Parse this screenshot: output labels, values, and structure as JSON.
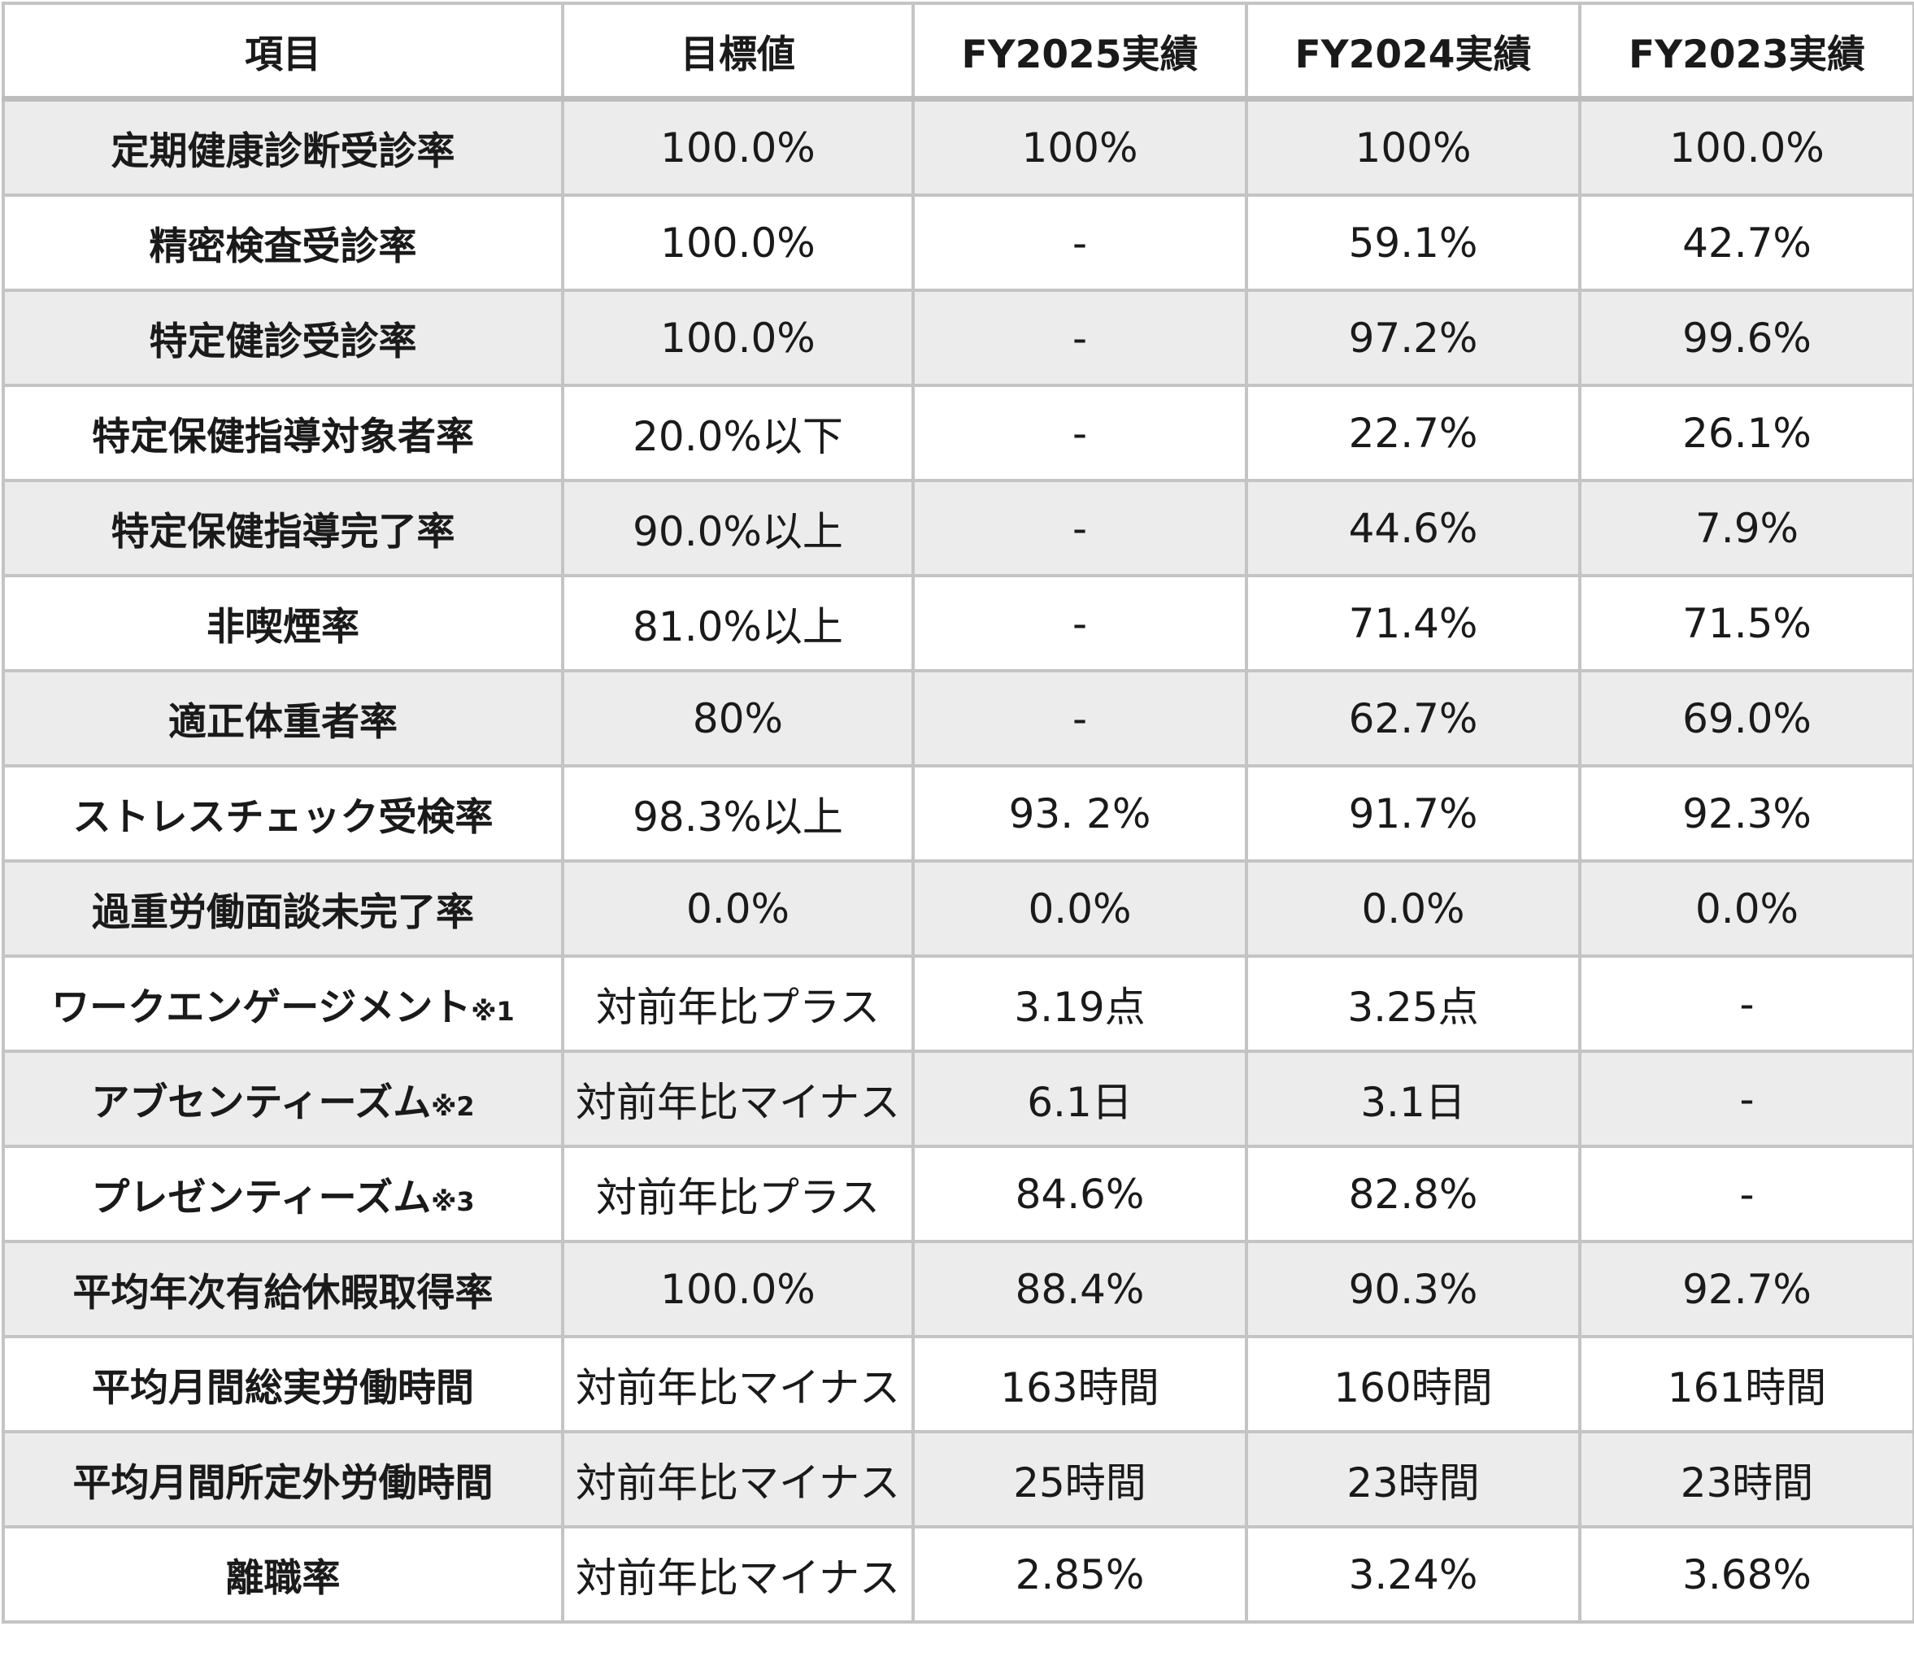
{
  "table": {
    "headers": [
      "項目",
      "目標値",
      "FY2025実績",
      "FY2024実績",
      "FY2023実績"
    ],
    "rows": [
      {
        "item": "定期健康診断受診率",
        "note": "",
        "target": "100.0%",
        "fy2025": "100%",
        "fy2024": "100%",
        "fy2023": "100.0%"
      },
      {
        "item": "精密検査受診率",
        "note": "",
        "target": "100.0%",
        "fy2025": "-",
        "fy2024": "59.1%",
        "fy2023": "42.7%"
      },
      {
        "item": "特定健診受診率",
        "note": "",
        "target": "100.0%",
        "fy2025": "-",
        "fy2024": "97.2%",
        "fy2023": "99.6%"
      },
      {
        "item": "特定保健指導対象者率",
        "note": "",
        "target": "20.0%以下",
        "fy2025": "-",
        "fy2024": "22.7%",
        "fy2023": "26.1%"
      },
      {
        "item": "特定保健指導完了率",
        "note": "",
        "target": "90.0%以上",
        "fy2025": "-",
        "fy2024": "44.6%",
        "fy2023": "7.9%"
      },
      {
        "item": "非喫煙率",
        "note": "",
        "target": "81.0%以上",
        "fy2025": "-",
        "fy2024": "71.4%",
        "fy2023": "71.5%"
      },
      {
        "item": "適正体重者率",
        "note": "",
        "target": "80%",
        "fy2025": "-",
        "fy2024": "62.7%",
        "fy2023": "69.0%"
      },
      {
        "item": "ストレスチェック受検率",
        "note": "",
        "target": "98.3%以上",
        "fy2025": "93. 2%",
        "fy2024": "91.7%",
        "fy2023": "92.3%"
      },
      {
        "item": "過重労働面談未完了率",
        "note": "",
        "target": "0.0%",
        "fy2025": "0.0%",
        "fy2024": "0.0%",
        "fy2023": "0.0%"
      },
      {
        "item": "ワークエンゲージメント",
        "note": "※1",
        "target": "対前年比プラス",
        "fy2025": "3.19点",
        "fy2024": "3.25点",
        "fy2023": "-"
      },
      {
        "item": "アブセンティーズム",
        "note": "※2",
        "target": "対前年比マイナス",
        "fy2025": "6.1日",
        "fy2024": "3.1日",
        "fy2023": "-"
      },
      {
        "item": "プレゼンティーズム",
        "note": "※3",
        "target": "対前年比プラス",
        "fy2025": "84.6%",
        "fy2024": "82.8%",
        "fy2023": "-"
      },
      {
        "item": "平均年次有給休暇取得率",
        "note": "",
        "target": "100.0%",
        "fy2025": "88.4%",
        "fy2024": "90.3%",
        "fy2023": "92.7%"
      },
      {
        "item": "平均月間総実労働時間",
        "note": "",
        "target": "対前年比マイナス",
        "fy2025": "163時間",
        "fy2024": "160時間",
        "fy2023": "161時間"
      },
      {
        "item": "平均月間所定外労働時間",
        "note": "",
        "target": "対前年比マイナス",
        "fy2025": "25時間",
        "fy2024": "23時間",
        "fy2023": "23時間"
      },
      {
        "item": "離職率",
        "note": "",
        "target": "対前年比マイナス",
        "fy2025": "2.85%",
        "fy2024": "3.24%",
        "fy2023": "3.68%"
      }
    ]
  },
  "colors": {
    "shaded_row": "#ececec",
    "plain_row": "#ffffff",
    "border": "#c4c4c4",
    "text": "#1a1a1a"
  }
}
